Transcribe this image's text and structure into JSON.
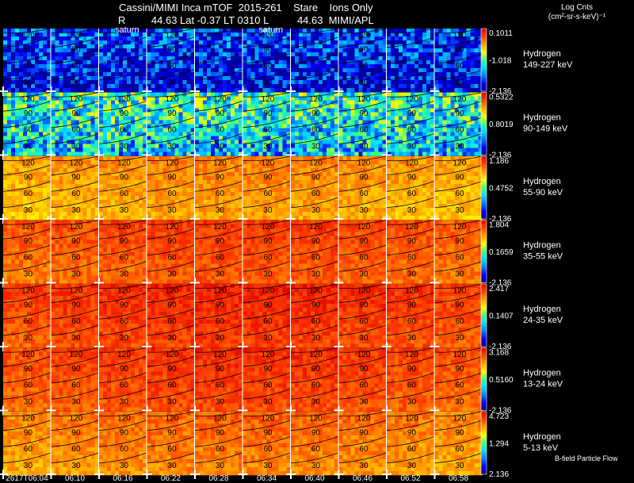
{
  "header": {
    "title_line": "Cassini/MIMI Inca mTOF  2015-261    Stare    Ions Only",
    "info_line": "R         44.63 Lat -0.37 LT 0310 L          44.63  MIMI/APL"
  },
  "units": {
    "line1": "Log Cnts",
    "line2": "(cm²-sr-s-keV)⁻¹"
  },
  "panel_tag": "saturn",
  "footer_label": "B-field  Particle Flow",
  "chart_data": {
    "type": "heatmap",
    "title": "Cassini/MIMI Inca mTOF  2015-261    Stare    Ions Only",
    "colorbar_label": "Log Cnts (cm²-sr-s-keV)⁻¹",
    "colorscale": [
      "#0000a0",
      "#0000ff",
      "#0080ff",
      "#00e0ff",
      "#40ff80",
      "#ffff00",
      "#ffa000",
      "#ff4000",
      "#e00000"
    ],
    "x_ticks": [
      "2617T06:04",
      "06:10",
      "06:16",
      "06:22",
      "06:28",
      "06:34",
      "06:40",
      "06:46",
      "06:52",
      "06:58"
    ],
    "latitude_contours": [
      "120",
      "90",
      "60",
      "30"
    ],
    "rows": [
      {
        "species": "Hydrogen",
        "energy": "149-227 keV",
        "max": "0.1011",
        "mid": "-1.018",
        "min": "-2.136",
        "level": 0.18
      },
      {
        "species": "Hydrogen",
        "energy": "90-149 keV",
        "max": "0.5322",
        "mid": "0.8019",
        "min": "-2.136",
        "level": 0.45
      },
      {
        "species": "Hydrogen",
        "energy": "55-90 keV",
        "max": "1.186",
        "mid": "0.4752",
        "min": "-2.136",
        "level": 0.72
      },
      {
        "species": "Hydrogen",
        "energy": "35-55 keV",
        "max": "1.804",
        "mid": "0.1659",
        "min": "-2.136",
        "level": 0.82
      },
      {
        "species": "Hydrogen",
        "energy": "24-35 keV",
        "max": "2.417",
        "mid": "0.1407",
        "min": "-2.136",
        "level": 0.86
      },
      {
        "species": "Hydrogen",
        "energy": "13-24 keV",
        "max": "3.168",
        "mid": "0.5160",
        "min": "-2.136",
        "level": 0.84
      },
      {
        "species": "Hydrogen",
        "energy": "5-13 keV",
        "max": "4.723",
        "mid": "1.294",
        "min": "2.136",
        "level": 0.76
      }
    ]
  }
}
